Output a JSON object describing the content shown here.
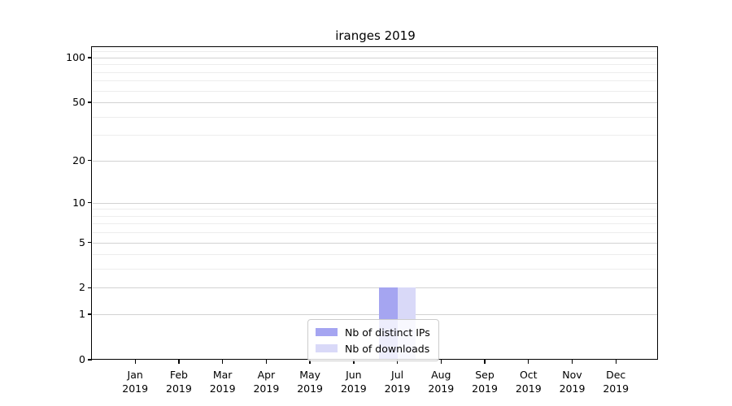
{
  "chart_data": {
    "type": "bar",
    "title": "iranges 2019",
    "x_months": [
      "Jan",
      "Feb",
      "Mar",
      "Apr",
      "May",
      "Jun",
      "Jul",
      "Aug",
      "Sep",
      "Oct",
      "Nov",
      "Dec"
    ],
    "x_year": "2019",
    "categories": [
      "Jan 2019",
      "Feb 2019",
      "Mar 2019",
      "Apr 2019",
      "May 2019",
      "Jun 2019",
      "Jul 2019",
      "Aug 2019",
      "Sep 2019",
      "Oct 2019",
      "Nov 2019",
      "Dec 2019"
    ],
    "series": [
      {
        "name": "Nb of distinct IPs",
        "color": "#a5a5f1",
        "values": [
          0,
          0,
          0,
          0,
          0,
          0,
          2,
          0,
          0,
          0,
          0,
          0
        ]
      },
      {
        "name": "Nb of downloads",
        "color": "#d9d9f8",
        "values": [
          0,
          0,
          0,
          0,
          0,
          0,
          2,
          0,
          0,
          0,
          0,
          0
        ]
      }
    ],
    "y_scale": "log1p",
    "ylim": [
      0,
      116
    ],
    "y_major_ticks": [
      0,
      1,
      2,
      5,
      10,
      20,
      50,
      100
    ],
    "y_minor_ticks": [
      3,
      4,
      6,
      7,
      8,
      9,
      30,
      40,
      60,
      70,
      80,
      90,
      110
    ],
    "grid": "both",
    "legend_position": "lower center inside"
  },
  "colors": {
    "grid_major": "#d2d2d2",
    "grid_minor": "#ededed",
    "axis": "#000000",
    "legend_border": "#cccccc"
  }
}
